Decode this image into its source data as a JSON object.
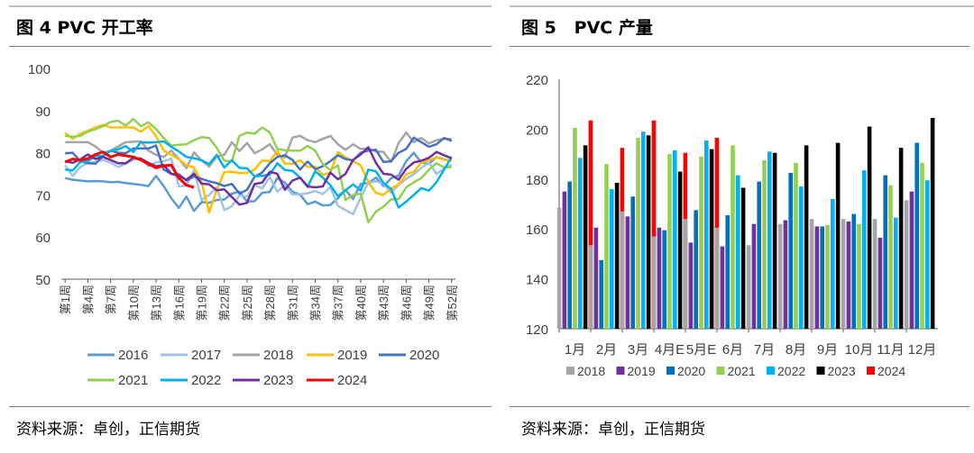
{
  "left": {
    "title": "图 4 PVC 开工率",
    "source": "资料来源：卓创，正信期货",
    "chart_data": {
      "type": "line",
      "ylim": [
        50,
        100
      ],
      "y_ticks": [
        "50",
        "60",
        "70",
        "80",
        "90",
        "100"
      ],
      "x_tick_labels": [
        "第1周",
        "第4周",
        "第7周",
        "第10周",
        "第13周",
        "第16周",
        "第19周",
        "第22周",
        "第25周",
        "第28周",
        "第31周",
        "第34周",
        "第37周",
        "第40周",
        "第43周",
        "第46周",
        "第49周",
        "第52周"
      ],
      "legend_position": "bottom",
      "series": [
        {
          "name": "2016",
          "color": "#5b9bd5",
          "values": [
            74,
            73.6,
            73.4,
            73.2,
            73.3,
            73.2,
            73,
            73.1,
            72.8,
            72.6,
            72.4,
            72.1,
            74.5,
            72.1,
            69.2,
            66.9,
            69.6,
            66.2,
            68.3,
            68.1,
            68.8,
            68.9,
            70.3,
            70.8,
            68.4,
            68.5,
            70.5,
            70.7,
            74,
            72.9,
            70.7,
            70.1,
            67.8,
            68.4,
            67.5,
            67.6,
            69.2,
            71.2,
            69,
            72.6,
            72.8,
            74.1,
            72.1,
            73.9,
            74.6,
            78,
            80,
            77.7,
            77.4,
            79,
            78.4,
            78.1
          ]
        },
        {
          "name": "2017",
          "color": "#9dc3e6",
          "values": [
            77,
            74.5,
            76.6,
            77.6,
            77.8,
            78.3,
            77.7,
            76.6,
            77.4,
            78.3,
            78.7,
            76.8,
            77.7,
            78,
            78.6,
            72,
            72.2,
            75.8,
            68.8,
            70,
            71.8,
            66.4,
            67.3,
            69.9,
            69.6,
            72.4,
            71.5,
            74.2,
            70.8,
            72.3,
            70.1,
            70.1,
            70.4,
            70.9,
            70.2,
            71.9,
            67.4,
            66.4,
            65.4,
            69.4,
            72.9,
            73.2,
            72.7,
            70.5,
            72.4,
            73.8,
            74.9,
            76.4,
            77.6,
            75,
            76.2,
            77.2
          ]
        },
        {
          "name": "2018",
          "color": "#a5a5a5",
          "values": [
            82.5,
            82.5,
            82.5,
            82.5,
            81.5,
            80,
            80.5,
            81.5,
            82.5,
            82.6,
            82.7,
            80.5,
            79.5,
            79,
            80.5,
            78.6,
            76.3,
            80.1,
            78.2,
            76.7,
            79.1,
            79.5,
            82.5,
            80.4,
            82.3,
            79.9,
            80.8,
            82,
            79.5,
            78.9,
            83.6,
            84,
            83,
            82.5,
            83.3,
            84,
            82,
            80.7,
            82,
            80.9,
            81,
            80.3,
            80.2,
            77.8,
            82.3,
            84.8,
            82.5,
            83.5,
            82.2,
            83,
            83.3,
            83.3
          ]
        },
        {
          "name": "2019",
          "color": "#ffc000",
          "values": [
            84.7,
            83.3,
            84.5,
            85.2,
            86,
            86.6,
            86,
            86,
            86,
            86,
            85,
            86.3,
            84,
            80.5,
            79.5,
            78.5,
            77,
            76.5,
            73,
            65.8,
            71.2,
            75.4,
            75.5,
            75.2,
            75.2,
            76,
            78.2,
            78,
            80.4,
            77.4,
            77.4,
            78.2,
            76.6,
            76.7,
            74.7,
            75.3,
            80.2,
            78.9,
            78,
            77,
            73,
            70.5,
            70,
            71.5,
            72.5,
            74.9,
            75.5,
            77.7,
            78.2,
            78.9,
            78.3,
            78.1
          ]
        },
        {
          "name": "2020",
          "color": "#4472c4",
          "values": [
            79.9,
            80,
            78,
            77.5,
            77.4,
            79.2,
            80.5,
            80,
            79.9,
            81,
            81,
            81,
            81.7,
            76,
            75,
            74.9,
            73.4,
            74.4,
            73.8,
            73.2,
            72.8,
            72.1,
            72.6,
            70.3,
            71.2,
            74.3,
            75.3,
            77.5,
            79,
            79.4,
            78.3,
            76,
            77.9,
            76.1,
            76.8,
            78,
            79.4,
            78.5,
            78.2,
            80,
            80.5,
            80.7,
            77.8,
            78,
            80,
            80.9,
            83.6,
            82.5,
            81.4,
            82,
            83.5,
            82.8
          ]
        },
        {
          "name": "2021",
          "color": "#92d050",
          "values": [
            84,
            83.8,
            84,
            85,
            85.6,
            86.3,
            87.3,
            87.6,
            86.4,
            88,
            86.3,
            87.2,
            85.6,
            83.5,
            81.7,
            81.9,
            82,
            83,
            83.7,
            83.5,
            81.2,
            78.1,
            78,
            84,
            84.8,
            84.5,
            86,
            84.8,
            80.9,
            80.6,
            80.5,
            80.5,
            81.6,
            80.5,
            77.3,
            75.9,
            77,
            68.8,
            70,
            70.3,
            63.5,
            66,
            67.2,
            68.9,
            69,
            71.8,
            73,
            74,
            76,
            77.5,
            76.5,
            76.6
          ]
        },
        {
          "name": "2022",
          "color": "#00b0f0",
          "values": [
            76,
            75.8,
            77.8,
            78,
            79.2,
            79.3,
            80.5,
            80.8,
            81.6,
            80.2,
            82.5,
            82.4,
            82.5,
            82.7,
            81.4,
            80.3,
            79,
            78.7,
            78.2,
            77.3,
            79.5,
            76.5,
            78.2,
            76.4,
            76.3,
            74.4,
            74.5,
            74.8,
            77.5,
            75.9,
            75.7,
            74.1,
            71.9,
            75.6,
            74.1,
            72.3,
            69.7,
            71.1,
            72.5,
            71,
            76,
            75.6,
            72.8,
            71.4,
            67,
            68.4,
            70,
            71.6,
            71,
            73,
            76,
            79
          ]
        },
        {
          "name": "2023",
          "color": "#7030a0",
          "values": [
            78,
            77.6,
            78.4,
            79.6,
            78.5,
            79,
            78.3,
            77.5,
            77.5,
            78.8,
            78.6,
            77.6,
            76.8,
            77.1,
            75,
            74.5,
            73.6,
            75,
            72.7,
            72.5,
            71.1,
            71.3,
            69.5,
            67.7,
            68.1,
            72.6,
            72.9,
            75.5,
            75,
            71.2,
            73.4,
            74.1,
            72,
            71.8,
            72,
            75.3,
            73.7,
            75,
            78.3,
            79.6,
            81.3,
            77.6,
            75,
            74.8,
            73.6,
            76.2,
            77.7,
            78.1,
            78.8,
            80.2,
            79.4,
            78.7
          ]
        },
        {
          "name": "2024",
          "color": "#ff0000",
          "values": [
            77.8,
            78.5,
            78.2,
            78.6,
            79.6,
            80.2,
            79,
            79.6,
            79.3,
            79,
            78.3,
            77.3,
            76.4,
            76.9,
            77.1,
            74,
            72.3,
            71.8
          ]
        }
      ]
    }
  },
  "right": {
    "title": "图 5   PVC 产量",
    "source": "资料来源：卓创，正信期货",
    "chart_data": {
      "type": "bar",
      "ylim": [
        120,
        220
      ],
      "y_ticks": [
        "120",
        "140",
        "160",
        "180",
        "200",
        "220"
      ],
      "categories": [
        "1月",
        "2月",
        "3月",
        "4月E",
        "5月E",
        "6月",
        "7月",
        "8月",
        "9月",
        "10月",
        "11月",
        "12月"
      ],
      "legend_position": "bottom",
      "series": [
        {
          "name": "2018",
          "color": "#a5a5a5",
          "values": [
            168.5,
            153.5,
            167,
            157,
            164,
            160.5,
            153.5,
            162,
            164,
            164,
            164,
            171.5
          ]
        },
        {
          "name": "2019",
          "color": "#7030a0",
          "values": [
            175,
            160.5,
            165,
            160.5,
            154.5,
            153,
            162,
            163.5,
            161,
            163,
            156.5,
            175
          ]
        },
        {
          "name": "2020",
          "color": "#0070c0",
          "values": [
            179,
            147.5,
            173,
            159.5,
            167.5,
            165.5,
            179,
            182.5,
            161,
            166,
            181.5,
            194.5
          ]
        },
        {
          "name": "2021",
          "color": "#92d050",
          "values": [
            200.5,
            186,
            196.5,
            190,
            189,
            193.5,
            187.5,
            186.5,
            161.5,
            162,
            177.5,
            186.5
          ]
        },
        {
          "name": "2022",
          "color": "#00b0f0",
          "values": [
            188.5,
            176,
            199,
            191.5,
            195.5,
            181.5,
            191,
            177,
            172,
            183.5,
            164.5,
            179.5
          ]
        },
        {
          "name": "2023",
          "color": "#000000",
          "values": [
            193.5,
            178.5,
            197.5,
            183,
            192,
            176.5,
            190.5,
            193.5,
            194.5,
            201,
            192.5,
            204.5
          ]
        },
        {
          "name": "2024",
          "color": "#ff0000",
          "values": [
            203.5,
            192.5,
            203.5,
            190.5,
            196.5,
            null,
            null,
            null,
            null,
            null,
            null,
            null
          ]
        }
      ]
    }
  }
}
